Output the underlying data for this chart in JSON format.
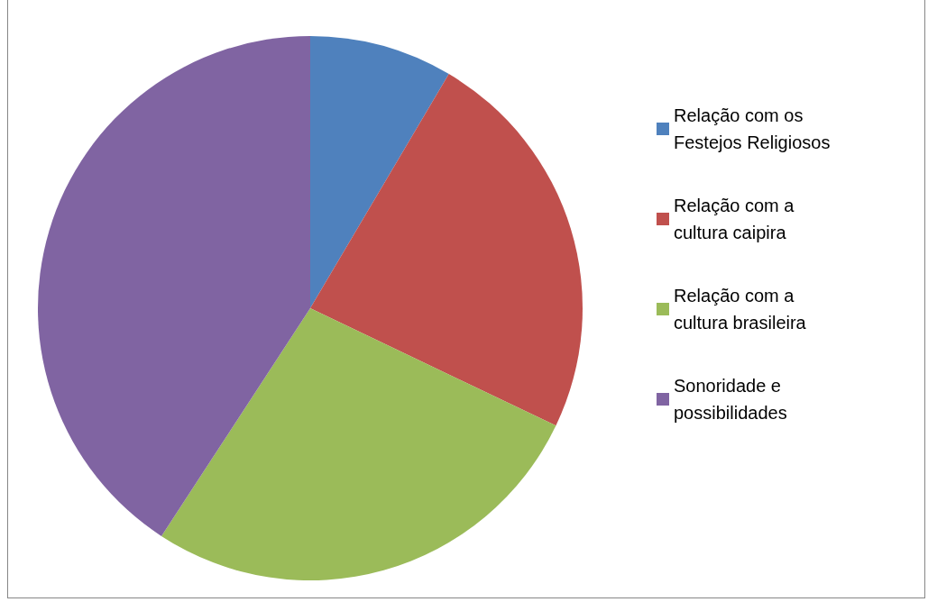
{
  "chart_data": {
    "type": "pie",
    "categories": [
      "Relação com os Festejos Religiosos",
      "Relação com a cultura caipira",
      "Relação com a cultura brasileira",
      "Sonoridade e possibilidades"
    ],
    "values": [
      8.5,
      23.6,
      27.1,
      40.8
    ],
    "colors": [
      "#4f81bd",
      "#c0504d",
      "#9bbb59",
      "#8064a2"
    ],
    "legend": "right"
  }
}
